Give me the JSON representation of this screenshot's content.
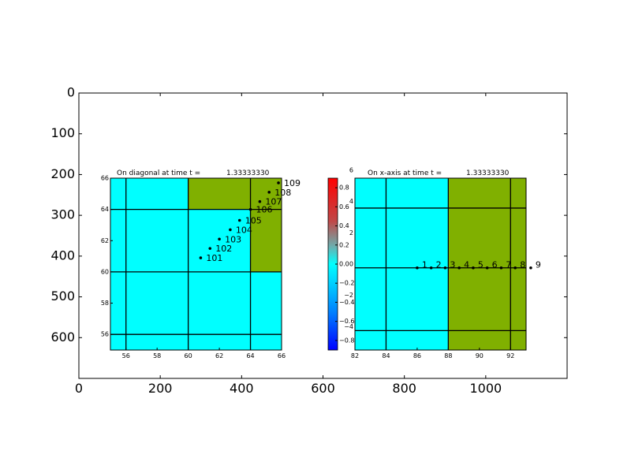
{
  "chart_data": [
    {
      "type": "axes",
      "name": "outer-canvas",
      "xlim": [
        0,
        1200
      ],
      "ylim": [
        700,
        0
      ],
      "xticks": [
        0,
        200,
        400,
        600,
        800,
        1000
      ],
      "yticks": [
        0,
        100,
        200,
        300,
        400,
        500,
        600
      ],
      "grid": false
    },
    {
      "type": "heatmap",
      "name": "diagonal-panel",
      "title_prefix": "On diagonal at time t =",
      "time_value": "1.33333330",
      "xlim": [
        55,
        66
      ],
      "ylim": [
        55,
        66
      ],
      "xticks": [
        56,
        58,
        60,
        62,
        64,
        66
      ],
      "yticks": [
        56,
        58,
        60,
        62,
        64,
        66
      ],
      "grid_x": [
        56,
        60,
        64
      ],
      "grid_y": [
        56,
        60,
        64
      ],
      "regions": [
        {
          "x": [
            55,
            66
          ],
          "y": [
            55,
            66
          ],
          "color": "#00ffff"
        },
        {
          "x": [
            60,
            66
          ],
          "y": [
            64,
            66
          ],
          "color": "#80b000"
        },
        {
          "x": [
            64,
            66
          ],
          "y": [
            60,
            64
          ],
          "color": "#80b000"
        }
      ],
      "points": [
        {
          "x": 60.8,
          "y": 60.9,
          "label": "101"
        },
        {
          "x": 61.4,
          "y": 61.5,
          "label": "102"
        },
        {
          "x": 62.0,
          "y": 62.1,
          "label": "103"
        },
        {
          "x": 62.7,
          "y": 62.7,
          "label": "104"
        },
        {
          "x": 63.3,
          "y": 63.3,
          "label": "105"
        },
        {
          "x": 64.0,
          "y": 64.0,
          "label": "106"
        },
        {
          "x": 64.6,
          "y": 64.5,
          "label": "107"
        },
        {
          "x": 65.2,
          "y": 65.1,
          "label": "108"
        },
        {
          "x": 65.8,
          "y": 65.7,
          "label": "109"
        }
      ]
    },
    {
      "type": "colorbar",
      "name": "colorbar",
      "ylim": [
        -0.9,
        0.9
      ],
      "ticks": [
        "0.8",
        "0.6",
        "0.4",
        "0.2",
        "0.0",
        "−0.2",
        "−0.4",
        "−0.6",
        "−0.8"
      ],
      "tick_values": [
        0.8,
        0.6,
        0.4,
        0.2,
        0.0,
        -0.2,
        -0.4,
        -0.6,
        -0.8
      ],
      "overlapping_labels": [
        "6",
        "4",
        "2",
        "0",
        "−2",
        "−4"
      ],
      "overlapping_values": [
        6,
        4,
        2,
        0,
        -2,
        -4
      ],
      "overlapping_lim": [
        -5.5,
        5.5
      ]
    },
    {
      "type": "heatmap",
      "name": "x-axis-panel",
      "title_prefix": "On x-axis at time t =",
      "time_value": "1.33333330",
      "xlim": [
        82,
        93
      ],
      "ylim": [
        -5.5,
        6
      ],
      "xticks": [
        82,
        84,
        86,
        88,
        90,
        92
      ],
      "grid_x": [
        84,
        88,
        92
      ],
      "grid_y": [
        -4.2,
        0,
        4
      ],
      "regions": [
        {
          "x": [
            82,
            88
          ],
          "y": [
            -5.5,
            6
          ],
          "color": "#00ffff"
        },
        {
          "x": [
            88,
            93
          ],
          "y": [
            -5.5,
            6
          ],
          "color": "#80b000"
        }
      ],
      "points": [
        {
          "x": 86.0,
          "y": 0,
          "label": "1"
        },
        {
          "x": 86.9,
          "y": 0,
          "label": "2"
        },
        {
          "x": 87.8,
          "y": 0,
          "label": "3"
        },
        {
          "x": 88.7,
          "y": 0,
          "label": "4"
        },
        {
          "x": 89.6,
          "y": 0,
          "label": "5"
        },
        {
          "x": 90.5,
          "y": 0,
          "label": "6"
        },
        {
          "x": 91.4,
          "y": 0,
          "label": "7"
        },
        {
          "x": 92.3,
          "y": 0,
          "label": "8"
        },
        {
          "x": 93.3,
          "y": 0,
          "label": "9"
        }
      ]
    }
  ]
}
